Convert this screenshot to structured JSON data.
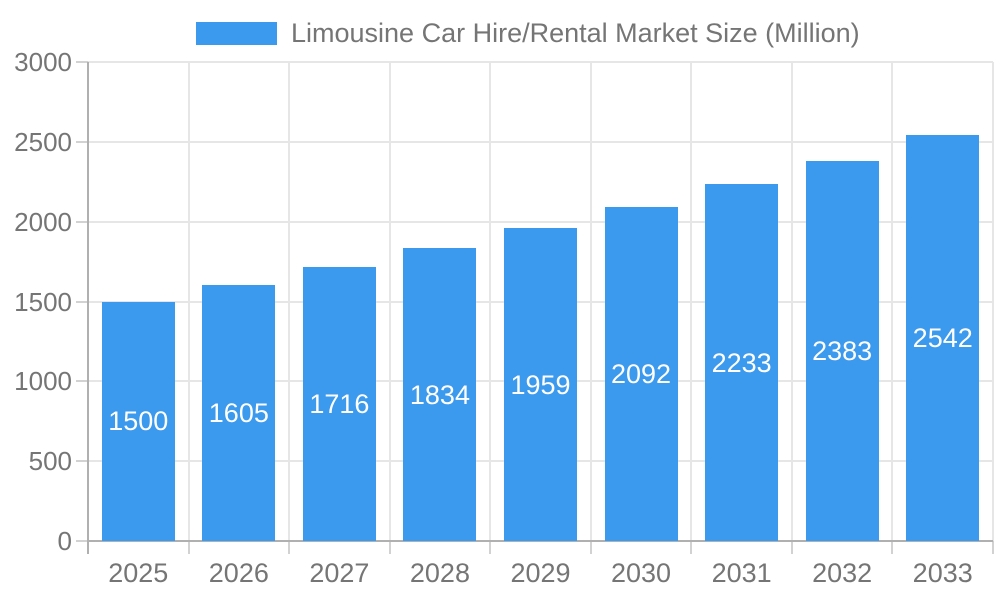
{
  "legend": {
    "label": "Limousine Car Hire/Rental Market Size (Million)"
  },
  "chart_data": {
    "type": "bar",
    "title": "Limousine Car Hire/Rental Market Size (Million)",
    "categories": [
      "2025",
      "2026",
      "2027",
      "2028",
      "2029",
      "2030",
      "2031",
      "2032",
      "2033"
    ],
    "series": [
      {
        "name": "Limousine Car Hire/Rental Market Size (Million)",
        "values": [
          1500,
          1605,
          1716,
          1834,
          1959,
          2092,
          2233,
          2383,
          2542
        ]
      }
    ],
    "xlabel": "",
    "ylabel": "",
    "ylim": [
      0,
      3000
    ],
    "yticks": [
      0,
      500,
      1000,
      1500,
      2000,
      2500,
      3000
    ],
    "grid": true,
    "legend_position": "top",
    "bar_labels_visible": true
  },
  "colors": {
    "bar": "#3B99EE",
    "text": "#757575",
    "gridline": "#E6E6E6",
    "axis": "#B0B0B0",
    "tick": "#D2D2D2",
    "bar_label": "#FFFFFF",
    "background": "#FFFFFF"
  }
}
